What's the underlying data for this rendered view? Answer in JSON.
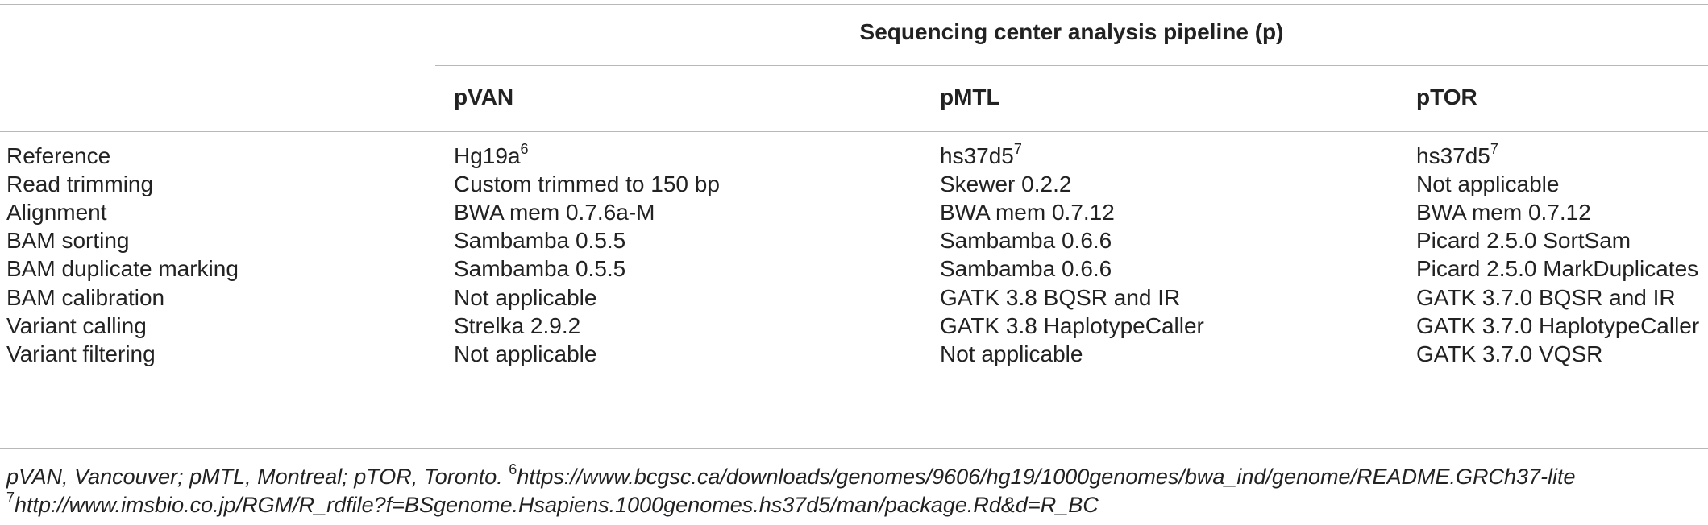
{
  "table": {
    "group_header": "Sequencing center analysis pipeline (p)",
    "columns": [
      "pVAN",
      "pMTL",
      "pTOR"
    ],
    "rows": [
      {
        "label": "Reference",
        "cells": [
          {
            "text": "Hg19a",
            "sup": "6"
          },
          {
            "text": "hs37d5",
            "sup": "7"
          },
          {
            "text": "hs37d5",
            "sup": "7"
          }
        ]
      },
      {
        "label": "Read trimming",
        "cells": [
          {
            "text": "Custom trimmed to 150 bp",
            "sup": ""
          },
          {
            "text": "Skewer 0.2.2",
            "sup": ""
          },
          {
            "text": "Not applicable",
            "sup": ""
          }
        ]
      },
      {
        "label": "Alignment",
        "cells": [
          {
            "text": "BWA mem 0.7.6a-M",
            "sup": ""
          },
          {
            "text": "BWA mem 0.7.12",
            "sup": ""
          },
          {
            "text": "BWA mem 0.7.12",
            "sup": ""
          }
        ]
      },
      {
        "label": "BAM sorting",
        "cells": [
          {
            "text": "Sambamba 0.5.5",
            "sup": ""
          },
          {
            "text": "Sambamba 0.6.6",
            "sup": ""
          },
          {
            "text": "Picard 2.5.0 SortSam",
            "sup": ""
          }
        ]
      },
      {
        "label": "BAM duplicate marking",
        "cells": [
          {
            "text": "Sambamba 0.5.5",
            "sup": ""
          },
          {
            "text": "Sambamba 0.6.6",
            "sup": ""
          },
          {
            "text": "Picard 2.5.0 MarkDuplicates",
            "sup": ""
          }
        ]
      },
      {
        "label": "BAM calibration",
        "cells": [
          {
            "text": "Not applicable",
            "sup": ""
          },
          {
            "text": "GATK 3.8 BQSR and IR",
            "sup": ""
          },
          {
            "text": "GATK 3.7.0 BQSR and IR",
            "sup": ""
          }
        ]
      },
      {
        "label": "Variant calling",
        "cells": [
          {
            "text": "Strelka 2.9.2",
            "sup": ""
          },
          {
            "text": "GATK 3.8 HaplotypeCaller",
            "sup": ""
          },
          {
            "text": "GATK 3.7.0 HaplotypeCaller",
            "sup": ""
          }
        ]
      },
      {
        "label": "Variant filtering",
        "cells": [
          {
            "text": "Not applicable",
            "sup": ""
          },
          {
            "text": "Not applicable",
            "sup": ""
          },
          {
            "text": "GATK 3.7.0 VQSR",
            "sup": ""
          }
        ]
      }
    ]
  },
  "footnotes": {
    "line1_text": "pVAN, Vancouver; pMTL, Montreal; pTOR, Toronto. ",
    "line1_sup": "6",
    "line1_link": "https://www.bcgsc.ca/downloads/genomes/9606/hg19/1000genomes/bwa_ind/genome/README.GRCh37-lite",
    "line2_sup": "7",
    "line2_link": "http://www.imsbio.co.jp/RGM/R_rdfile?f=BSgenome.Hsapiens.1000genomes.hs37d5/man/package.Rd&d=R_BC"
  }
}
